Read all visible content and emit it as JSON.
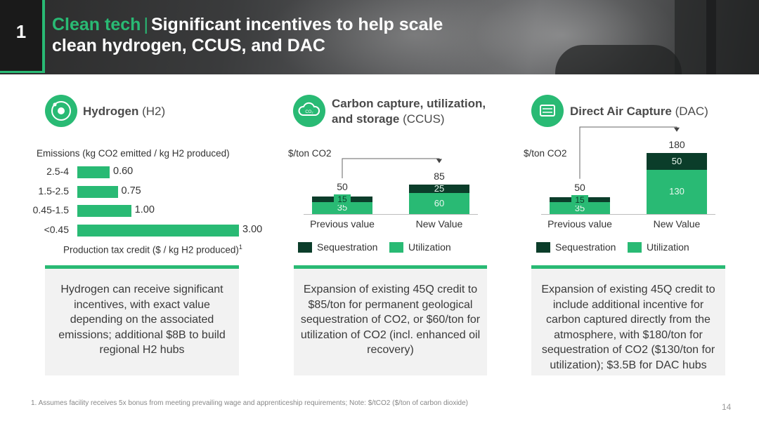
{
  "header": {
    "slide_number": "1",
    "title_accent": "Clean tech",
    "title_separator": "|",
    "title_line1": "Significant incentives to help scale",
    "title_line2": "clean hydrogen, CCUS, and DAC"
  },
  "colors": {
    "green": "#29ba74",
    "dark_green": "#0b3d2a",
    "box_bg": "#f2f2f2"
  },
  "sections": {
    "h2": {
      "title": "Hydrogen ",
      "title_paren": "(H2)",
      "icon": "hydrogen-atom-icon",
      "body": "Hydrogen can receive significant incentives, with exact value depending on the associated emissions; additional $8B to build regional H2 hubs"
    },
    "ccus": {
      "title_line1": "Carbon capture, utilization,",
      "title_line2": "and storage ",
      "title_paren": "(CCUS)",
      "icon": "co2-cloud-icon",
      "body": "Expansion of existing 45Q credit to $85/ton for permanent geological sequestration of CO2, or $60/ton for utilization of CO2 (incl. enhanced oil recovery)"
    },
    "dac": {
      "title": "Direct Air Capture ",
      "title_paren": "(DAC)",
      "icon": "air-capture-unit-icon",
      "body": "Expansion of existing 45Q credit to include additional incentive for carbon captured directly from the atmosphere, with $180/ton for sequestration of CO2 ($130/ton for utilization); $3.5B for DAC hubs"
    }
  },
  "legend": {
    "sequestration": "Sequestration",
    "utilization": "Utilization"
  },
  "chart_data": [
    {
      "type": "bar",
      "orientation": "horizontal",
      "title": "Emissions (kg CO2 emitted / kg H2 produced)",
      "xlabel": "Production tax credit ($ / kg H2 produced)",
      "xlabel_sup": "1",
      "categories": [
        "2.5-4",
        "1.5-2.5",
        "0.45-1.5",
        "<0.45"
      ],
      "values": [
        0.6,
        0.75,
        1.0,
        3.0
      ],
      "value_labels": [
        "0.60",
        "0.75",
        "1.00",
        "3.00"
      ],
      "xlim": [
        0,
        3
      ]
    },
    {
      "type": "bar",
      "stacked": true,
      "title": "CCUS",
      "ylabel": "$/ton CO2",
      "categories": [
        "Previous value",
        "New Value"
      ],
      "series": [
        {
          "name": "Utilization",
          "values": [
            35,
            60
          ]
        },
        {
          "name": "Sequestration",
          "values": [
            15,
            25
          ]
        }
      ],
      "totals": [
        50,
        85
      ],
      "ylim": [
        0,
        180
      ]
    },
    {
      "type": "bar",
      "stacked": true,
      "title": "DAC",
      "ylabel": "$/ton CO2",
      "categories": [
        "Previous value",
        "New Value"
      ],
      "series": [
        {
          "name": "Utilization",
          "values": [
            35,
            130
          ]
        },
        {
          "name": "Sequestration",
          "values": [
            15,
            50
          ]
        }
      ],
      "totals": [
        50,
        180
      ],
      "ylim": [
        0,
        180
      ]
    }
  ],
  "footer": {
    "footnote": "1. Assumes facility receives 5x bonus from meeting prevailing wage and apprenticeship requirements; Note: $/tCO2 ($/ton of carbon dioxide)",
    "page_number": "14"
  }
}
